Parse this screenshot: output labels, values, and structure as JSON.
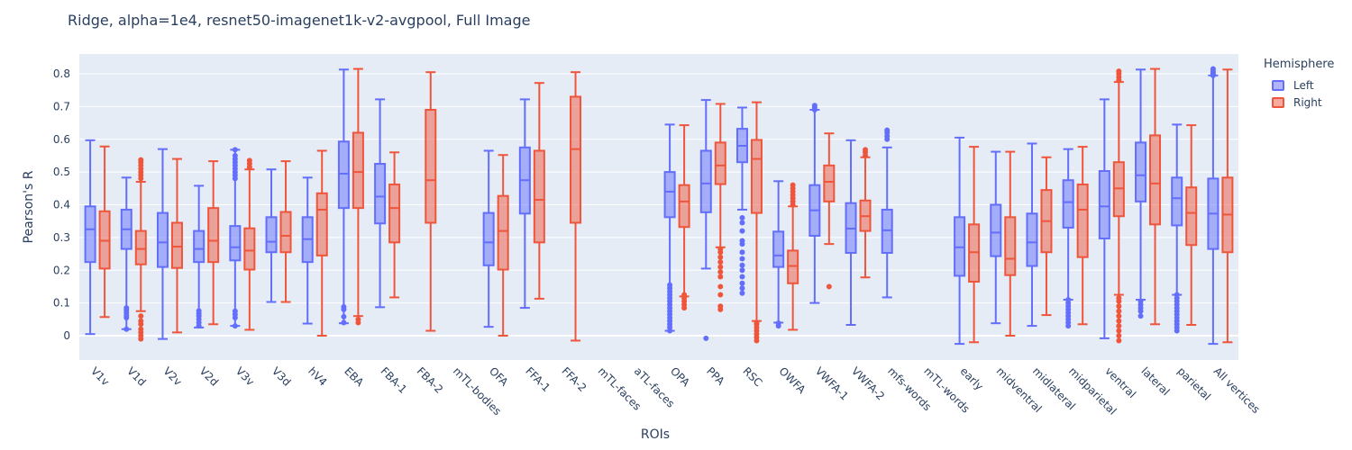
{
  "chart_data": {
    "type": "box",
    "title": "Ridge, alpha=1e4, resnet50-imagenet1k-v2-avgpool, Full Image",
    "xlabel": "ROIs",
    "ylabel": "Pearson's R",
    "ylim": [
      -0.07,
      0.85
    ],
    "yticks": [
      0,
      0.1,
      0.2,
      0.3,
      0.4,
      0.5,
      0.6,
      0.7,
      0.8
    ],
    "ytick_labels": [
      "0",
      "0.1",
      "0.2",
      "0.3",
      "0.4",
      "0.5",
      "0.6",
      "0.7",
      "0.8"
    ],
    "grid": true,
    "legend_title": "Hemisphere",
    "legend_position": "top-right",
    "categories": [
      "V1v",
      "V1d",
      "V2v",
      "V2d",
      "V3v",
      "V3d",
      "hV4",
      "EBA",
      "FBA-1",
      "FBA-2",
      "mTL-bodies",
      "OFA",
      "FFA-1",
      "FFA-2",
      "mTL-faces",
      "aTL-faces",
      "OPA",
      "PPA",
      "RSC",
      "OWFA",
      "VWFA-1",
      "VWFA-2",
      "mfs-words",
      "mTL-words",
      "early",
      "midventral",
      "midlateral",
      "midparietal",
      "ventral",
      "lateral",
      "parietal",
      "All vertices"
    ],
    "series": [
      {
        "name": "Left",
        "color": "#636efa",
        "fill": "rgba(99,110,250,0.5)",
        "boxes": [
          {
            "min": 0.005,
            "q1": 0.225,
            "median": 0.325,
            "q3": 0.395,
            "max": 0.597,
            "outliers": []
          },
          {
            "min": 0.02,
            "q1": 0.265,
            "median": 0.325,
            "q3": 0.385,
            "max": 0.483,
            "outliers": [
              0.055,
              0.062,
              0.07,
              0.078,
              0.085,
              0.02
            ]
          },
          {
            "min": -0.01,
            "q1": 0.21,
            "median": 0.285,
            "q3": 0.375,
            "max": 0.57,
            "outliers": []
          },
          {
            "min": 0.025,
            "q1": 0.225,
            "median": 0.265,
            "q3": 0.32,
            "max": 0.458,
            "outliers": [
              0.03,
              0.04,
              0.05,
              0.06,
              0.068,
              0.076
            ]
          },
          {
            "min": 0.03,
            "q1": 0.23,
            "median": 0.27,
            "q3": 0.335,
            "max": 0.568,
            "outliers": [
              0.03,
              0.055,
              0.065,
              0.075,
              0.48,
              0.49,
              0.5,
              0.51,
              0.52,
              0.53,
              0.54,
              0.55,
              0.568
            ]
          },
          {
            "min": 0.103,
            "q1": 0.255,
            "median": 0.287,
            "q3": 0.362,
            "max": 0.508,
            "outliers": []
          },
          {
            "min": 0.037,
            "q1": 0.225,
            "median": 0.295,
            "q3": 0.362,
            "max": 0.483,
            "outliers": []
          },
          {
            "min": 0.038,
            "q1": 0.39,
            "median": 0.495,
            "q3": 0.593,
            "max": 0.813,
            "outliers": [
              0.04,
              0.058,
              0.08,
              0.088
            ]
          },
          {
            "min": 0.087,
            "q1": 0.343,
            "median": 0.425,
            "q3": 0.525,
            "max": 0.722,
            "outliers": []
          },
          null,
          null,
          {
            "min": 0.027,
            "q1": 0.215,
            "median": 0.285,
            "q3": 0.375,
            "max": 0.565,
            "outliers": []
          },
          {
            "min": 0.085,
            "q1": 0.373,
            "median": 0.475,
            "q3": 0.575,
            "max": 0.722,
            "outliers": []
          },
          null,
          null,
          null,
          {
            "min": 0.015,
            "q1": 0.362,
            "median": 0.44,
            "q3": 0.5,
            "max": 0.645,
            "outliers": [
              0.015,
              0.025,
              0.035,
              0.045,
              0.055,
              0.065,
              0.075,
              0.085,
              0.095,
              0.105,
              0.115,
              0.125,
              0.135,
              0.145,
              0.155
            ]
          },
          {
            "min": 0.205,
            "q1": 0.377,
            "median": 0.465,
            "q3": 0.565,
            "max": 0.72,
            "outliers": [
              -0.008
            ]
          },
          {
            "min": 0.385,
            "q1": 0.53,
            "median": 0.58,
            "q3": 0.632,
            "max": 0.697,
            "outliers": [
              0.13,
              0.145,
              0.16,
              0.18,
              0.2,
              0.215,
              0.235,
              0.255,
              0.28,
              0.29,
              0.32,
              0.345,
              0.36
            ]
          },
          {
            "min": 0.04,
            "q1": 0.21,
            "median": 0.245,
            "q3": 0.318,
            "max": 0.472,
            "outliers": [
              0.03,
              0.038
            ]
          },
          {
            "min": 0.1,
            "q1": 0.305,
            "median": 0.383,
            "q3": 0.46,
            "max": 0.69,
            "outliers": [
              0.69,
              0.697,
              0.703
            ]
          },
          {
            "min": 0.033,
            "q1": 0.253,
            "median": 0.327,
            "q3": 0.405,
            "max": 0.597,
            "outliers": []
          },
          {
            "min": 0.117,
            "q1": 0.253,
            "median": 0.322,
            "q3": 0.385,
            "max": 0.575,
            "outliers": [
              0.6,
              0.61,
              0.62,
              0.628
            ]
          },
          null,
          {
            "min": -0.025,
            "q1": 0.183,
            "median": 0.27,
            "q3": 0.362,
            "max": 0.605,
            "outliers": []
          },
          {
            "min": 0.038,
            "q1": 0.243,
            "median": 0.315,
            "q3": 0.4,
            "max": 0.562,
            "outliers": []
          },
          {
            "min": 0.03,
            "q1": 0.213,
            "median": 0.285,
            "q3": 0.373,
            "max": 0.587,
            "outliers": []
          },
          {
            "min": 0.11,
            "q1": 0.33,
            "median": 0.408,
            "q3": 0.475,
            "max": 0.57,
            "outliers": [
              0.03,
              0.04,
              0.05,
              0.06,
              0.07,
              0.08,
              0.09,
              0.1,
              0.11
            ]
          },
          {
            "min": -0.008,
            "q1": 0.297,
            "median": 0.395,
            "q3": 0.503,
            "max": 0.722,
            "outliers": []
          },
          {
            "min": 0.11,
            "q1": 0.41,
            "median": 0.49,
            "q3": 0.59,
            "max": 0.813,
            "outliers": [
              0.06,
              0.075,
              0.085,
              0.095,
              0.105
            ]
          },
          {
            "min": 0.125,
            "q1": 0.337,
            "median": 0.42,
            "q3": 0.483,
            "max": 0.645,
            "outliers": [
              0.015,
              0.025,
              0.035,
              0.045,
              0.055,
              0.065,
              0.075,
              0.085,
              0.095,
              0.105,
              0.115,
              0.125
            ]
          },
          {
            "min": -0.025,
            "q1": 0.265,
            "median": 0.373,
            "q3": 0.48,
            "max": 0.795,
            "outliers": [
              0.795,
              0.8,
              0.805,
              0.81,
              0.815
            ]
          }
        ]
      },
      {
        "name": "Right",
        "color": "#ef553b",
        "fill": "rgba(239,85,59,0.5)",
        "boxes": [
          {
            "min": 0.057,
            "q1": 0.205,
            "median": 0.29,
            "q3": 0.38,
            "max": 0.578,
            "outliers": []
          },
          {
            "min": 0.075,
            "q1": 0.218,
            "median": 0.265,
            "q3": 0.32,
            "max": 0.47,
            "outliers": [
              -0.01,
              0.0,
              0.01,
              0.02,
              0.035,
              0.045,
              0.06,
              0.48,
              0.49,
              0.5,
              0.51,
              0.52,
              0.53,
              0.537
            ]
          },
          {
            "min": 0.01,
            "q1": 0.207,
            "median": 0.272,
            "q3": 0.345,
            "max": 0.54,
            "outliers": []
          },
          {
            "min": 0.035,
            "q1": 0.225,
            "median": 0.29,
            "q3": 0.39,
            "max": 0.533,
            "outliers": []
          },
          {
            "min": 0.018,
            "q1": 0.202,
            "median": 0.26,
            "q3": 0.328,
            "max": 0.508,
            "outliers": [
              0.515,
              0.525,
              0.535
            ]
          },
          {
            "min": 0.103,
            "q1": 0.255,
            "median": 0.305,
            "q3": 0.378,
            "max": 0.533,
            "outliers": []
          },
          {
            "min": 0.0,
            "q1": 0.245,
            "median": 0.385,
            "q3": 0.435,
            "max": 0.565,
            "outliers": []
          },
          {
            "min": 0.06,
            "q1": 0.39,
            "median": 0.5,
            "q3": 0.62,
            "max": 0.815,
            "outliers": [
              0.04,
              0.05
            ]
          },
          {
            "min": 0.117,
            "q1": 0.285,
            "median": 0.39,
            "q3": 0.462,
            "max": 0.56,
            "outliers": []
          },
          {
            "min": 0.015,
            "q1": 0.345,
            "median": 0.475,
            "q3": 0.69,
            "max": 0.805,
            "outliers": []
          },
          null,
          {
            "min": 0.0,
            "q1": 0.202,
            "median": 0.32,
            "q3": 0.427,
            "max": 0.552,
            "outliers": []
          },
          {
            "min": 0.113,
            "q1": 0.285,
            "median": 0.415,
            "q3": 0.565,
            "max": 0.772,
            "outliers": []
          },
          {
            "min": -0.015,
            "q1": 0.345,
            "median": 0.57,
            "q3": 0.73,
            "max": 0.805,
            "outliers": []
          },
          null,
          null,
          {
            "min": 0.12,
            "q1": 0.332,
            "median": 0.41,
            "q3": 0.46,
            "max": 0.643,
            "outliers": [
              0.085,
              0.095,
              0.105,
              0.115,
              0.125
            ]
          },
          {
            "min": 0.27,
            "q1": 0.463,
            "median": 0.52,
            "q3": 0.59,
            "max": 0.708,
            "outliers": [
              0.08,
              0.09,
              0.125,
              0.15,
              0.18,
              0.195,
              0.21,
              0.225,
              0.24,
              0.255,
              0.265
            ]
          },
          {
            "min": 0.045,
            "q1": 0.375,
            "median": 0.54,
            "q3": 0.598,
            "max": 0.713,
            "outliers": [
              -0.015,
              -0.005,
              0.005,
              0.015,
              0.025,
              0.035,
              0.04
            ]
          },
          {
            "min": 0.018,
            "q1": 0.16,
            "median": 0.213,
            "q3": 0.26,
            "max": 0.395,
            "outliers": [
              0.4,
              0.41,
              0.42,
              0.43,
              0.44,
              0.45,
              0.46
            ]
          },
          {
            "min": 0.28,
            "q1": 0.41,
            "median": 0.47,
            "q3": 0.52,
            "max": 0.618,
            "outliers": [
              0.15
            ]
          },
          {
            "min": 0.178,
            "q1": 0.32,
            "median": 0.365,
            "q3": 0.413,
            "max": 0.545,
            "outliers": [
              0.55,
              0.56,
              0.568
            ]
          },
          null,
          null,
          {
            "min": -0.02,
            "q1": 0.165,
            "median": 0.255,
            "q3": 0.34,
            "max": 0.577,
            "outliers": []
          },
          {
            "min": 0.0,
            "q1": 0.185,
            "median": 0.235,
            "q3": 0.362,
            "max": 0.562,
            "outliers": []
          },
          {
            "min": 0.063,
            "q1": 0.255,
            "median": 0.35,
            "q3": 0.445,
            "max": 0.545,
            "outliers": []
          },
          {
            "min": 0.035,
            "q1": 0.24,
            "median": 0.385,
            "q3": 0.462,
            "max": 0.577,
            "outliers": []
          },
          {
            "min": 0.125,
            "q1": 0.365,
            "median": 0.45,
            "q3": 0.53,
            "max": 0.775,
            "outliers": [
              -0.015,
              0.0,
              0.015,
              0.03,
              0.045,
              0.06,
              0.075,
              0.09,
              0.105,
              0.115,
              0.78,
              0.79,
              0.8,
              0.808
            ]
          },
          {
            "min": 0.035,
            "q1": 0.34,
            "median": 0.465,
            "q3": 0.612,
            "max": 0.815,
            "outliers": []
          },
          {
            "min": 0.033,
            "q1": 0.277,
            "median": 0.375,
            "q3": 0.453,
            "max": 0.643,
            "outliers": []
          },
          {
            "min": -0.02,
            "q1": 0.255,
            "median": 0.37,
            "q3": 0.483,
            "max": 0.813,
            "outliers": []
          }
        ]
      }
    ]
  }
}
